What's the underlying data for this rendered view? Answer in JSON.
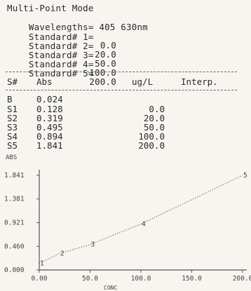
{
  "header": {
    "mode": "Multi-Point Mode",
    "wavelengths_label": "Wavelengths=",
    "wavelengths_value": "405 630nm",
    "standards": [
      {
        "label": "Standard# 1=",
        "value": "0.0"
      },
      {
        "label": "Standard# 2=",
        "value": "20.0"
      },
      {
        "label": "Standard# 3=",
        "value": "50.0"
      },
      {
        "label": "Standard# 4=",
        "value": "100.0"
      },
      {
        "label": "Standard# 5=",
        "value": "200.0"
      }
    ]
  },
  "table": {
    "headers": {
      "s": "S#",
      "abs": "Abs",
      "conc": "ug/L",
      "interp": "Interp."
    },
    "rows": [
      {
        "s": "B",
        "abs": "0.024",
        "conc": ""
      },
      {
        "s": "S1",
        "abs": "0.128",
        "conc": "0.0"
      },
      {
        "s": "S2",
        "abs": "0.319",
        "conc": "20.0"
      },
      {
        "s": "S3",
        "abs": "0.495",
        "conc": "50.0"
      },
      {
        "s": "S4",
        "abs": "0.894",
        "conc": "100.0"
      },
      {
        "s": "S5",
        "abs": "1.841",
        "conc": "200.0"
      }
    ]
  },
  "chart_data": {
    "type": "line",
    "title": "",
    "ylabel": "ABS",
    "xlabel": "CONC",
    "xlim": [
      0,
      200
    ],
    "ylim": [
      0,
      1.841
    ],
    "x_ticks": [
      "0.00",
      "50.0",
      "100.0",
      "150.0",
      "200.0"
    ],
    "y_ticks": [
      "0.000",
      "0.460",
      "0.921",
      "1.381",
      "1.841"
    ],
    "points": [
      {
        "label": "1",
        "x": 0.0,
        "y": 0.128
      },
      {
        "label": "2",
        "x": 20.0,
        "y": 0.319
      },
      {
        "label": "3",
        "x": 50.0,
        "y": 0.495
      },
      {
        "label": "4",
        "x": 100.0,
        "y": 0.894
      },
      {
        "label": "5",
        "x": 200.0,
        "y": 1.841
      }
    ],
    "grid": false,
    "line_style": "dotted"
  }
}
